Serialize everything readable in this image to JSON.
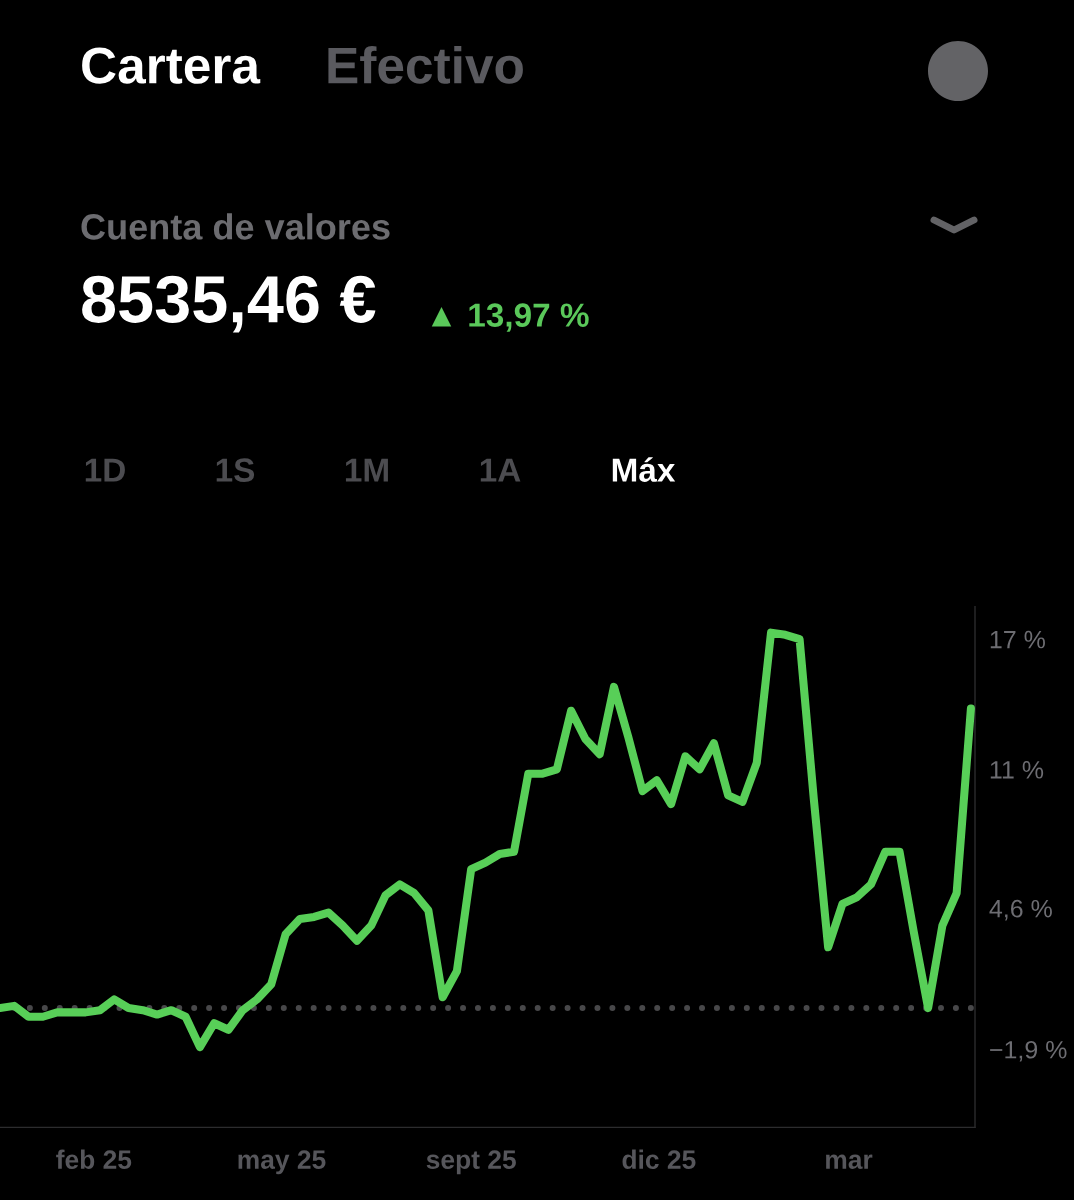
{
  "chart_data": {
    "type": "line",
    "title": "Cartera",
    "subtitle": "Cuenta de valores",
    "annotations": [
      "Efectivo",
      "8535,46 €",
      "▲ 13,97 %",
      "1D",
      "1S",
      "1M",
      "1A",
      "Máx"
    ],
    "x": [
      "2025-01-13",
      "2025-01-20",
      "2025-01-27",
      "2025-02-03",
      "2025-02-10",
      "2025-02-17",
      "2025-02-24",
      "2025-03-03",
      "2025-03-10",
      "2025-03-17",
      "2025-03-24",
      "2025-03-31",
      "2025-04-07",
      "2025-04-14",
      "2025-04-21",
      "2025-04-28",
      "2025-05-05",
      "2025-05-12",
      "2025-05-19",
      "2025-05-26",
      "2025-06-02",
      "2025-06-09",
      "2025-06-16",
      "2025-06-23",
      "2025-06-30",
      "2025-07-07",
      "2025-07-14",
      "2025-07-21",
      "2025-07-28",
      "2025-08-04",
      "2025-08-11",
      "2025-08-18",
      "2025-08-25",
      "2025-09-01",
      "2025-09-08",
      "2025-09-15",
      "2025-09-22",
      "2025-09-29",
      "2025-10-06",
      "2025-10-13",
      "2025-10-20",
      "2025-10-27",
      "2025-11-03",
      "2025-11-10",
      "2025-11-17",
      "2025-11-24",
      "2025-12-01",
      "2025-12-08",
      "2025-12-15",
      "2025-12-22",
      "2025-12-29",
      "2026-01-05",
      "2026-01-12",
      "2026-01-19",
      "2026-01-26",
      "2026-02-02",
      "2026-02-09",
      "2026-02-16",
      "2026-02-23",
      "2026-03-02",
      "2026-03-09",
      "2026-03-16",
      "2026-03-23",
      "2026-03-30",
      "2026-04-06",
      "2026-04-13",
      "2026-04-20",
      "2026-04-27",
      "2026-05-04"
    ],
    "series": [
      {
        "color": "#58cf58",
        "values": [
          0.0,
          0.1,
          -0.4,
          -0.4,
          -0.2,
          -0.2,
          -0.2,
          -0.1,
          0.4,
          0.0,
          -0.1,
          -0.3,
          -0.1,
          -0.4,
          -1.8,
          -0.7,
          -1.0,
          -0.1,
          0.4,
          1.1,
          3.4,
          4.1,
          4.2,
          4.4,
          3.8,
          3.1,
          3.8,
          5.2,
          5.7,
          5.3,
          4.5,
          0.5,
          1.7,
          6.4,
          6.7,
          7.1,
          7.2,
          10.8,
          10.8,
          11.0,
          13.7,
          12.4,
          11.7,
          14.8,
          12.5,
          10.0,
          10.5,
          9.4,
          11.6,
          11.0,
          12.2,
          9.8,
          9.5,
          11.3,
          17.3,
          17.2,
          17.0,
          9.6,
          2.8,
          4.8,
          5.1,
          5.7,
          7.2,
          7.2,
          3.5,
          0.0,
          3.8,
          5.3,
          13.8
        ]
      }
    ],
    "xlim": [
      "2025-01-13",
      "2026-05-06"
    ],
    "xticks": [
      {
        "value": "2025-02-28",
        "label": "feb 25"
      },
      {
        "value": "2025-05-31",
        "label": "may 25"
      },
      {
        "value": "2025-09-01",
        "label": "sept 25"
      },
      {
        "value": "2025-12-02",
        "label": "dic 25"
      },
      {
        "value": "2026-03-05",
        "label": "mar"
      }
    ],
    "ylim": [
      -5.5,
      18.5
    ],
    "yticks": [
      {
        "value": 17,
        "label": "17 %"
      },
      {
        "value": 11,
        "label": "11 %"
      },
      {
        "value": 4.6,
        "label": "4,6 %"
      },
      {
        "value": -1.9,
        "label": "−1,9 %"
      }
    ],
    "ref_lines": [
      {
        "axis": "y",
        "value": 0,
        "color": "#48484a",
        "line_style": "dotted"
      }
    ]
  }
}
